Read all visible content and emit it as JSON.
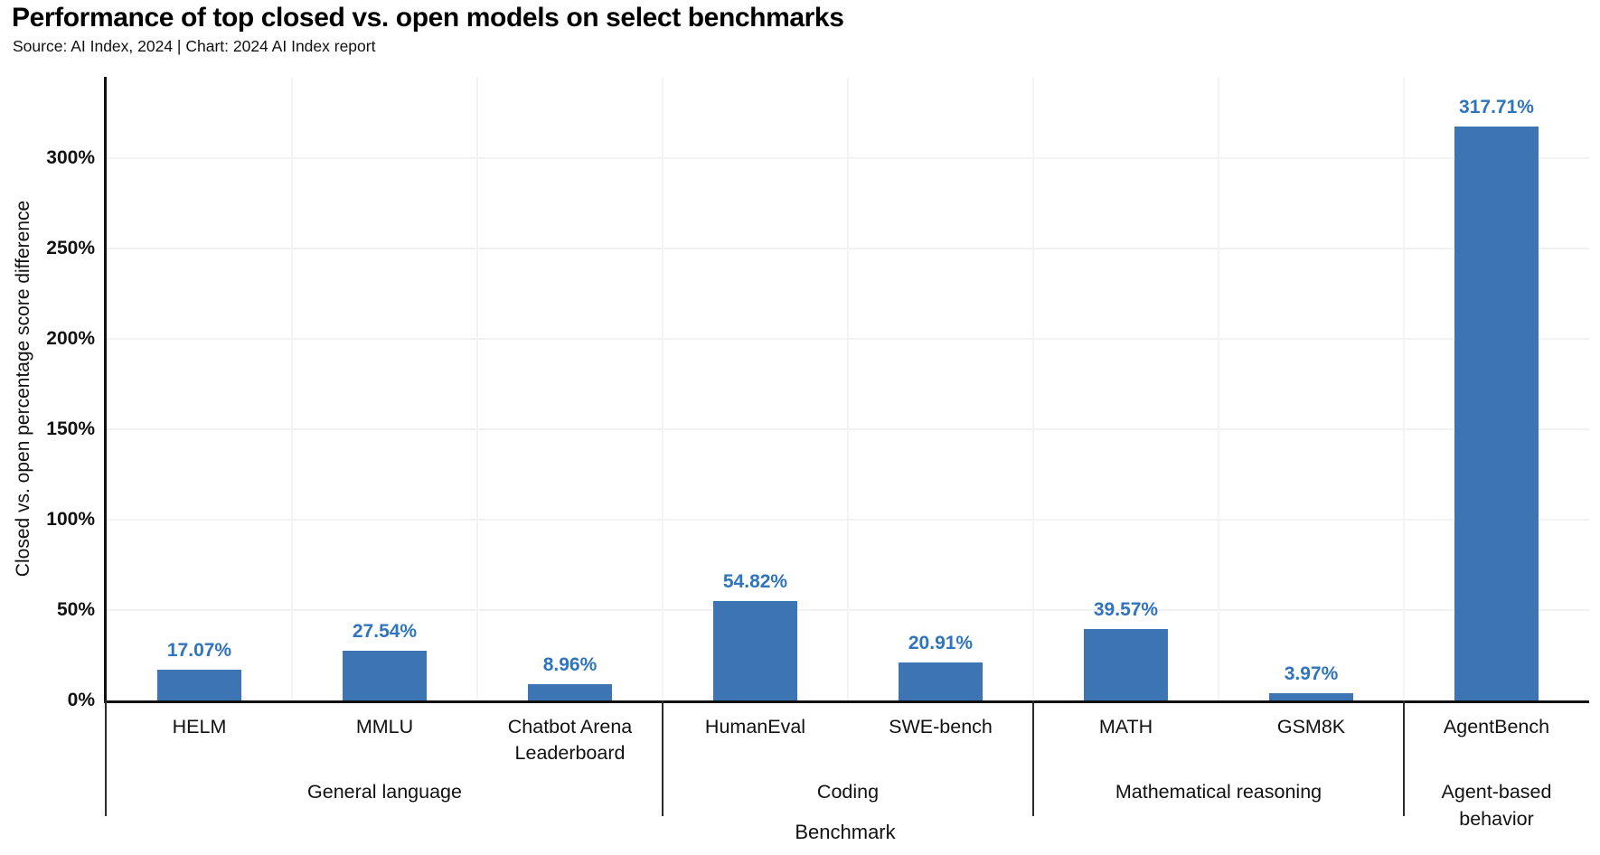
{
  "header": {
    "title": "Performance of top closed vs. open models on select benchmarks",
    "source_line": "Source: AI Index, 2024 | Chart: 2024 AI Index report"
  },
  "chart_data": {
    "type": "bar",
    "title": "Performance of top closed vs. open models on select benchmarks",
    "xlabel": "Benchmark",
    "ylabel": "Closed vs. open percentage score difference",
    "ylim": [
      0,
      345
    ],
    "ytick_values": [
      0,
      50,
      100,
      150,
      200,
      250,
      300
    ],
    "ytick_labels": [
      "0%",
      "50%",
      "100%",
      "150%",
      "200%",
      "250%",
      "300%"
    ],
    "grid": true,
    "legend": "none",
    "bar_color": "#3d75b4",
    "value_label_color": "#2f74be",
    "categories": [
      "HELM",
      "MMLU",
      "Chatbot Arena Leaderboard",
      "HumanEval",
      "SWE-bench",
      "MATH",
      "GSM8K",
      "AgentBench"
    ],
    "values": [
      17.07,
      27.54,
      8.96,
      54.82,
      20.91,
      39.57,
      3.97,
      317.71
    ],
    "value_labels": [
      "17.07%",
      "27.54%",
      "8.96%",
      "54.82%",
      "20.91%",
      "39.57%",
      "3.97%",
      "317.71%"
    ],
    "groups": [
      {
        "label": "General language",
        "span": 3
      },
      {
        "label": "Coding",
        "span": 2
      },
      {
        "label": "Mathematical reasoning",
        "span": 2
      },
      {
        "label": "Agent-based behavior",
        "span": 1
      }
    ]
  }
}
